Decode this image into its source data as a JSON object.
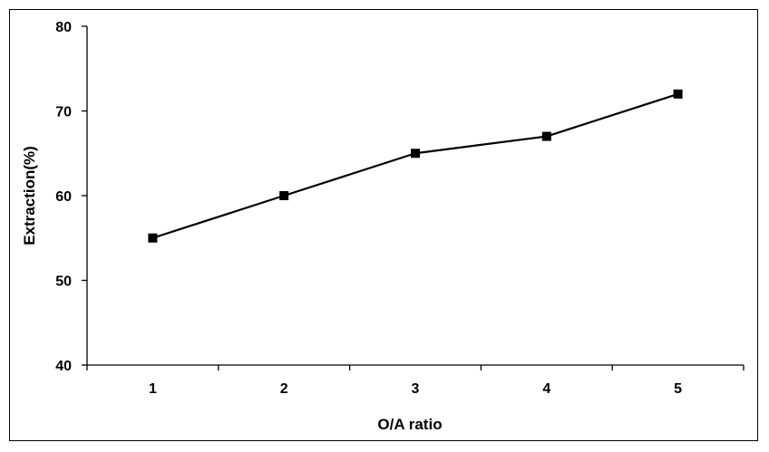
{
  "chart_data": {
    "type": "line",
    "title": "",
    "xlabel": "O/A ratio",
    "ylabel": "Extraction(%)",
    "categories": [
      "1",
      "2",
      "3",
      "4",
      "5"
    ],
    "series": [
      {
        "values": [
          55,
          60,
          65,
          67,
          72
        ],
        "marker": "square",
        "color": "#000000"
      }
    ],
    "ylim": [
      40,
      80
    ],
    "yticks": [
      "40",
      "50",
      "60",
      "70",
      "80"
    ],
    "grid": false,
    "legend": "none"
  }
}
